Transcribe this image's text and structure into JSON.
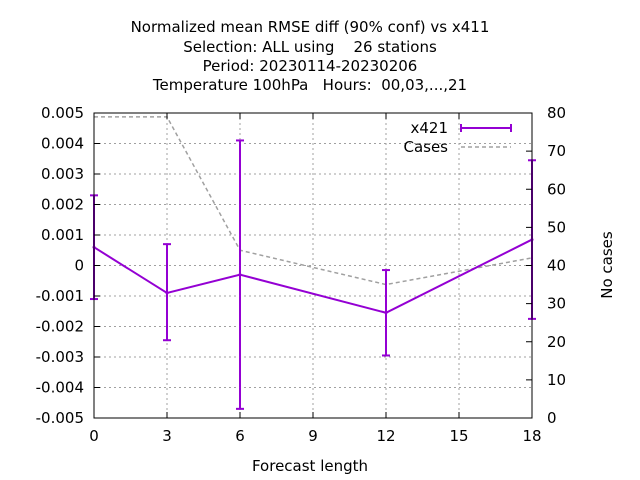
{
  "chart_data": {
    "type": "line",
    "title_lines": [
      "Normalized mean RMSE diff (90% conf) vs x411",
      "Selection: ALL using    26 stations",
      "Period: 20230114-20230206",
      "Temperature 100hPa   Hours:  00,03,...,21"
    ],
    "xlabel": "Forecast length",
    "ylabel": "",
    "y2label": "No cases",
    "xlim": [
      0,
      18
    ],
    "ylim": [
      -0.005,
      0.005
    ],
    "y2lim": [
      0,
      80
    ],
    "xticks": [
      "0",
      "3",
      "6",
      "9",
      "12",
      "15",
      "18"
    ],
    "yticks": [
      "-0.005",
      "-0.004",
      "-0.003",
      "-0.002",
      "-0.001",
      "0",
      "0.001",
      "0.002",
      "0.003",
      "0.004",
      "0.005"
    ],
    "y2ticks": [
      "0",
      "10",
      "20",
      "30",
      "40",
      "50",
      "60",
      "70",
      "80"
    ],
    "grid": true,
    "legend_position": "top-right",
    "series": [
      {
        "name": "x421",
        "color": "#9400d3",
        "axis": "y",
        "x": [
          0,
          3,
          6,
          12,
          18
        ],
        "y": [
          0.0006,
          -0.0009,
          -0.0003,
          -0.00155,
          0.00085
        ],
        "err_low": [
          -0.0011,
          -0.00245,
          -0.0047,
          -0.00295,
          -0.00175
        ],
        "err_high": [
          0.0023,
          0.0007,
          0.0041,
          -0.00015,
          0.00345
        ]
      },
      {
        "name": "Cases",
        "color": "#a0a0a0",
        "axis": "y2",
        "style": "dashed",
        "x": [
          0,
          3,
          6,
          12,
          18
        ],
        "y": [
          79,
          79,
          44,
          35,
          42
        ]
      }
    ]
  }
}
